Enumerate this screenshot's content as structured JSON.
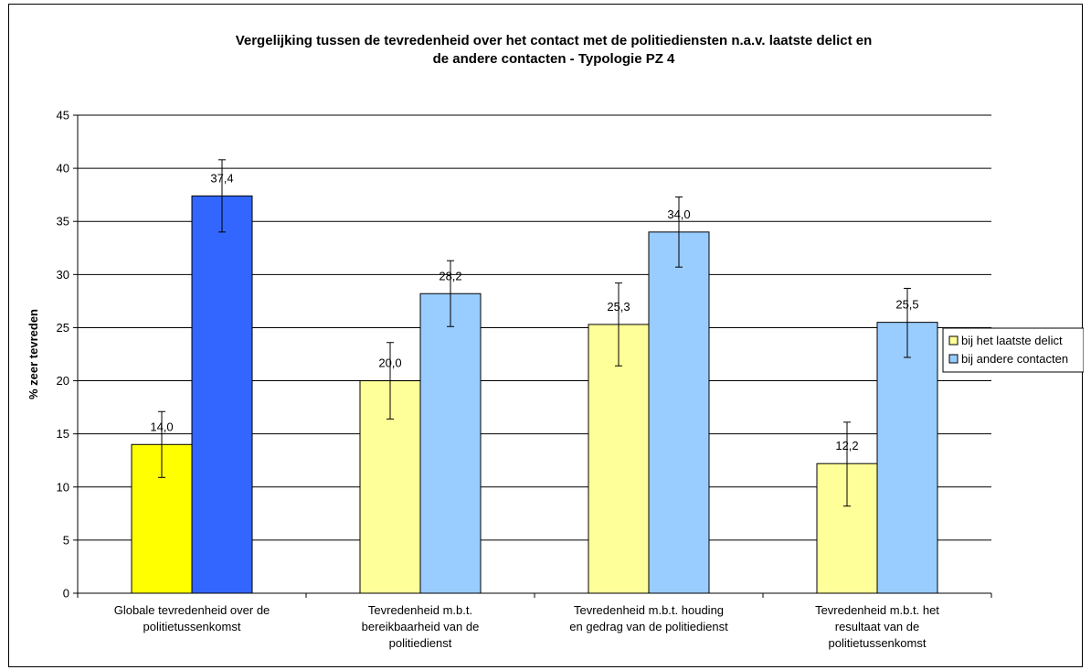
{
  "chart_data": {
    "type": "bar",
    "title_lines": [
      "Vergelijking tussen de tevredenheid over het contact met de politiediensten n.a.v. laatste delict en",
      "de andere contacten - Typologie PZ 4"
    ],
    "ylabel": "% zeer tevreden",
    "xlabel": "",
    "ylim": [
      0,
      45
    ],
    "ytick_step": 5,
    "grid": true,
    "legend_position": "right",
    "categories": [
      [
        "Globale tevredenheid over de",
        "politietussenkomst"
      ],
      [
        "Tevredenheid m.b.t.",
        "bereikbaarheid van de",
        "politiedienst"
      ],
      [
        "Tevredenheid m.b.t. houding",
        "en gedrag van de politiedienst"
      ],
      [
        "Tevredenheid m.b.t. het",
        "resultaat van de",
        "politietussenkomst"
      ]
    ],
    "series": [
      {
        "name": "bij het laatste delict",
        "values": [
          14.0,
          20.0,
          25.3,
          12.2
        ],
        "labels": [
          "14,0",
          "20,0",
          "25,3",
          "12,2"
        ],
        "err_low": [
          10.9,
          16.4,
          21.4,
          8.2
        ],
        "err_high": [
          17.1,
          23.6,
          29.2,
          16.1
        ],
        "colors": [
          "#ffff00",
          "#ffff99",
          "#ffff99",
          "#ffff99"
        ],
        "legend_color": "#ffff99"
      },
      {
        "name": "bij andere contacten",
        "values": [
          37.4,
          28.2,
          34.0,
          25.5
        ],
        "labels": [
          "37,4",
          "28,2",
          "34,0",
          "25,5"
        ],
        "err_low": [
          34.0,
          25.1,
          30.7,
          22.2
        ],
        "err_high": [
          40.8,
          31.3,
          37.3,
          28.7
        ],
        "colors": [
          "#3366ff",
          "#99ccff",
          "#99ccff",
          "#99ccff"
        ],
        "legend_color": "#99ccff"
      }
    ]
  }
}
